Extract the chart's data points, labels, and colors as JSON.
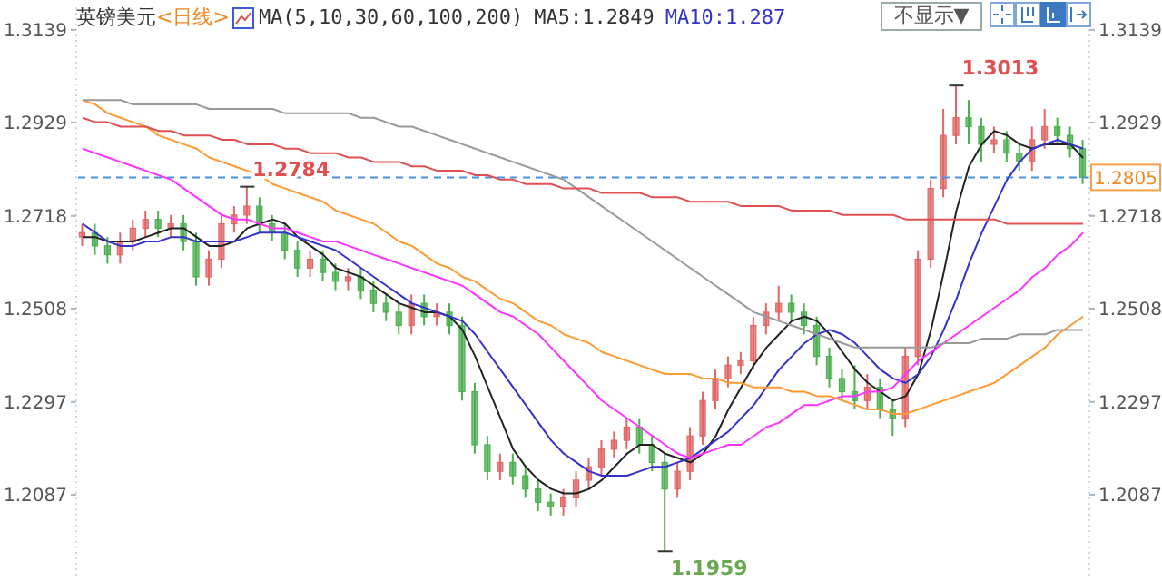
{
  "chart_data": {
    "type": "candlestick",
    "title": "英镑美元",
    "subtitle": "<日线>",
    "annotations": [
      "MA(5,10,30,60,100,200)",
      "MA5:1.2849",
      "MA10:1.287",
      "不显示▼",
      "1.3013",
      "1.2784",
      "1.1959"
    ],
    "categories": [
      null,
      null,
      null,
      null,
      null,
      null,
      null,
      null,
      null,
      null,
      null,
      null,
      null,
      null,
      null,
      null,
      null,
      null,
      null,
      null,
      null,
      null,
      null,
      null,
      null,
      null,
      null,
      null,
      null,
      null,
      null,
      null,
      null,
      null,
      null,
      null,
      null,
      null,
      null,
      null,
      null,
      null,
      null,
      null,
      null,
      null,
      null,
      null,
      null,
      null,
      null,
      null,
      null,
      null,
      null,
      null,
      null,
      null,
      null,
      null,
      null,
      null,
      null,
      null,
      null,
      null,
      null,
      null,
      null,
      null,
      null,
      null,
      null,
      null,
      null,
      null,
      null,
      null,
      null,
      null
    ],
    "ohlc": [
      [
        1.267,
        1.27,
        1.265,
        1.268
      ],
      [
        1.268,
        1.27,
        1.263,
        1.265
      ],
      [
        1.265,
        1.267,
        1.261,
        1.263
      ],
      [
        1.263,
        1.268,
        1.261,
        1.266
      ],
      [
        1.266,
        1.271,
        1.264,
        1.269
      ],
      [
        1.269,
        1.273,
        1.267,
        1.271
      ],
      [
        1.271,
        1.273,
        1.267,
        1.269
      ],
      [
        1.269,
        1.272,
        1.267,
        1.27
      ],
      [
        1.27,
        1.272,
        1.264,
        1.266
      ],
      [
        1.266,
        1.268,
        1.256,
        1.258
      ],
      [
        1.258,
        1.264,
        1.256,
        1.262
      ],
      [
        1.262,
        1.272,
        1.26,
        1.27
      ],
      [
        1.27,
        1.274,
        1.268,
        1.272
      ],
      [
        1.272,
        1.2784,
        1.27,
        1.274
      ],
      [
        1.274,
        1.276,
        1.268,
        1.27
      ],
      [
        1.27,
        1.272,
        1.266,
        1.268
      ],
      [
        1.268,
        1.27,
        1.262,
        1.264
      ],
      [
        1.264,
        1.266,
        1.258,
        1.26
      ],
      [
        1.26,
        1.264,
        1.258,
        1.262
      ],
      [
        1.262,
        1.264,
        1.257,
        1.259
      ],
      [
        1.259,
        1.261,
        1.255,
        1.257
      ],
      [
        1.257,
        1.26,
        1.255,
        1.258
      ],
      [
        1.258,
        1.26,
        1.253,
        1.255
      ],
      [
        1.255,
        1.257,
        1.25,
        1.252
      ],
      [
        1.252,
        1.254,
        1.248,
        1.25
      ],
      [
        1.25,
        1.252,
        1.245,
        1.247
      ],
      [
        1.247,
        1.254,
        1.245,
        1.252
      ],
      [
        1.252,
        1.254,
        1.247,
        1.249
      ],
      [
        1.249,
        1.252,
        1.247,
        1.25
      ],
      [
        1.25,
        1.252,
        1.245,
        1.247
      ],
      [
        1.247,
        1.249,
        1.23,
        1.232
      ],
      [
        1.232,
        1.234,
        1.218,
        1.22
      ],
      [
        1.22,
        1.222,
        1.212,
        1.214
      ],
      [
        1.214,
        1.218,
        1.212,
        1.216
      ],
      [
        1.216,
        1.218,
        1.211,
        1.213
      ],
      [
        1.213,
        1.215,
        1.208,
        1.21
      ],
      [
        1.21,
        1.212,
        1.205,
        1.207
      ],
      [
        1.207,
        1.209,
        1.204,
        1.206
      ],
      [
        1.206,
        1.21,
        1.204,
        1.208
      ],
      [
        1.208,
        1.214,
        1.206,
        1.212
      ],
      [
        1.212,
        1.217,
        1.21,
        1.215
      ],
      [
        1.215,
        1.221,
        1.213,
        1.219
      ],
      [
        1.219,
        1.223,
        1.217,
        1.221
      ],
      [
        1.221,
        1.226,
        1.219,
        1.224
      ],
      [
        1.224,
        1.226,
        1.218,
        1.22
      ],
      [
        1.22,
        1.222,
        1.214,
        1.216
      ],
      [
        1.216,
        1.218,
        1.1959,
        1.21
      ],
      [
        1.21,
        1.216,
        1.208,
        1.214
      ],
      [
        1.214,
        1.224,
        1.212,
        1.222
      ],
      [
        1.222,
        1.232,
        1.22,
        1.23
      ],
      [
        1.23,
        1.237,
        1.228,
        1.235
      ],
      [
        1.235,
        1.24,
        1.233,
        1.238
      ],
      [
        1.238,
        1.241,
        1.236,
        1.239
      ],
      [
        1.239,
        1.249,
        1.237,
        1.247
      ],
      [
        1.247,
        1.252,
        1.245,
        1.25
      ],
      [
        1.25,
        1.256,
        1.248,
        1.252
      ],
      [
        1.252,
        1.254,
        1.248,
        1.25
      ],
      [
        1.25,
        1.252,
        1.245,
        1.247
      ],
      [
        1.247,
        1.249,
        1.238,
        1.24
      ],
      [
        1.24,
        1.242,
        1.233,
        1.235
      ],
      [
        1.235,
        1.237,
        1.23,
        1.232
      ],
      [
        1.232,
        1.238,
        1.228,
        1.23
      ],
      [
        1.23,
        1.236,
        1.228,
        1.233
      ],
      [
        1.233,
        1.235,
        1.226,
        1.228
      ],
      [
        1.228,
        1.23,
        1.222,
        1.226
      ],
      [
        1.226,
        1.242,
        1.224,
        1.24
      ],
      [
        1.24,
        1.264,
        1.238,
        1.262
      ],
      [
        1.262,
        1.28,
        1.26,
        1.278
      ],
      [
        1.278,
        1.296,
        1.276,
        1.29
      ],
      [
        1.29,
        1.3013,
        1.288,
        1.294
      ],
      [
        1.294,
        1.298,
        1.288,
        1.292
      ],
      [
        1.292,
        1.294,
        1.284,
        1.288
      ],
      [
        1.288,
        1.292,
        1.286,
        1.289
      ],
      [
        1.289,
        1.291,
        1.284,
        1.286
      ],
      [
        1.286,
        1.288,
        1.282,
        1.284
      ],
      [
        1.284,
        1.292,
        1.282,
        1.289
      ],
      [
        1.289,
        1.296,
        1.287,
        1.292
      ],
      [
        1.292,
        1.294,
        1.288,
        1.29
      ],
      [
        1.29,
        1.292,
        1.285,
        1.287
      ],
      [
        1.287,
        1.289,
        1.279,
        1.2805
      ]
    ],
    "colors": [
      "#e06666",
      "#4caf50",
      "#4caf50",
      "#e06666",
      "#e06666",
      "#e06666",
      "#4caf50",
      "#e06666",
      "#4caf50",
      "#4caf50",
      "#e06666",
      "#e06666",
      "#e06666",
      "#e06666",
      "#4caf50",
      "#4caf50",
      "#4caf50",
      "#4caf50",
      "#e06666",
      "#4caf50",
      "#4caf50",
      "#e06666",
      "#4caf50",
      "#4caf50",
      "#4caf50",
      "#4caf50",
      "#e06666",
      "#4caf50",
      "#e06666",
      "#4caf50",
      "#4caf50",
      "#4caf50",
      "#4caf50",
      "#e06666",
      "#4caf50",
      "#4caf50",
      "#4caf50",
      "#4caf50",
      "#e06666",
      "#e06666",
      "#e06666",
      "#e06666",
      "#e06666",
      "#e06666",
      "#4caf50",
      "#4caf50",
      "#4caf50",
      "#e06666",
      "#e06666",
      "#e06666",
      "#e06666",
      "#e06666",
      "#e06666",
      "#e06666",
      "#e06666",
      "#e06666",
      "#4caf50",
      "#4caf50",
      "#4caf50",
      "#4caf50",
      "#4caf50",
      "#4caf50",
      "#e06666",
      "#4caf50",
      "#4caf50",
      "#e06666",
      "#e06666",
      "#e06666",
      "#e06666",
      "#e06666",
      "#4caf50",
      "#4caf50",
      "#e06666",
      "#4caf50",
      "#4caf50",
      "#e06666",
      "#e06666",
      "#4caf50",
      "#4caf50",
      "#4caf50"
    ],
    "series": [
      {
        "type": "line",
        "color": "#222222",
        "values": [
          1.267,
          1.267,
          1.266,
          1.266,
          1.266,
          1.267,
          1.268,
          1.269,
          1.269,
          1.267,
          1.265,
          1.265,
          1.266,
          1.269,
          1.27,
          1.271,
          1.27,
          1.267,
          1.265,
          1.263,
          1.26,
          1.259,
          1.258,
          1.256,
          1.254,
          1.252,
          1.251,
          1.25,
          1.25,
          1.249,
          1.246,
          1.24,
          1.233,
          1.226,
          1.219,
          1.215,
          1.212,
          1.21,
          1.209,
          1.209,
          1.21,
          1.212,
          1.215,
          1.218,
          1.22,
          1.22,
          1.218,
          1.217,
          1.216,
          1.218,
          1.222,
          1.228,
          1.233,
          1.238,
          1.242,
          1.245,
          1.248,
          1.249,
          1.248,
          1.245,
          1.241,
          1.237,
          1.234,
          1.232,
          1.23,
          1.231,
          1.236,
          1.246,
          1.259,
          1.273,
          1.283,
          1.288,
          1.291,
          1.29,
          1.288,
          1.287,
          1.288,
          1.288,
          1.288,
          1.2849
        ]
      },
      {
        "type": "line",
        "color": "#3333cc",
        "values": [
          1.27,
          1.268,
          1.266,
          1.265,
          1.265,
          1.266,
          1.266,
          1.267,
          1.267,
          1.266,
          1.266,
          1.266,
          1.266,
          1.267,
          1.268,
          1.268,
          1.268,
          1.267,
          1.266,
          1.265,
          1.264,
          1.262,
          1.26,
          1.258,
          1.256,
          1.254,
          1.252,
          1.251,
          1.25,
          1.249,
          1.248,
          1.245,
          1.241,
          1.237,
          1.233,
          1.229,
          1.225,
          1.221,
          1.218,
          1.216,
          1.214,
          1.213,
          1.213,
          1.213,
          1.214,
          1.215,
          1.215,
          1.216,
          1.217,
          1.219,
          1.221,
          1.223,
          1.226,
          1.229,
          1.233,
          1.237,
          1.24,
          1.243,
          1.245,
          1.246,
          1.245,
          1.243,
          1.24,
          1.237,
          1.235,
          1.234,
          1.236,
          1.24,
          1.246,
          1.253,
          1.261,
          1.268,
          1.274,
          1.28,
          1.284,
          1.287,
          1.288,
          1.289,
          1.288,
          1.287
        ]
      },
      {
        "type": "line",
        "color": "#ff33ff",
        "values": [
          1.287,
          1.286,
          1.285,
          1.284,
          1.283,
          1.282,
          1.281,
          1.28,
          1.278,
          1.276,
          1.274,
          1.272,
          1.271,
          1.271,
          1.27,
          1.269,
          1.269,
          1.268,
          1.267,
          1.266,
          1.266,
          1.265,
          1.264,
          1.263,
          1.262,
          1.261,
          1.26,
          1.259,
          1.258,
          1.257,
          1.256,
          1.254,
          1.252,
          1.25,
          1.249,
          1.247,
          1.245,
          1.242,
          1.239,
          1.236,
          1.233,
          1.23,
          1.228,
          1.226,
          1.224,
          1.222,
          1.22,
          1.218,
          1.217,
          1.218,
          1.219,
          1.22,
          1.22,
          1.222,
          1.224,
          1.225,
          1.227,
          1.229,
          1.229,
          1.23,
          1.231,
          1.231,
          1.232,
          1.232,
          1.233,
          1.236,
          1.239,
          1.241,
          1.243,
          1.245,
          1.247,
          1.249,
          1.251,
          1.253,
          1.255,
          1.258,
          1.26,
          1.263,
          1.265,
          1.268
        ]
      },
      {
        "type": "line",
        "color": "#ff9933",
        "values": [
          1.298,
          1.297,
          1.295,
          1.294,
          1.293,
          1.292,
          1.29,
          1.289,
          1.288,
          1.287,
          1.285,
          1.284,
          1.283,
          1.282,
          1.281,
          1.279,
          1.278,
          1.277,
          1.276,
          1.275,
          1.273,
          1.272,
          1.271,
          1.27,
          1.268,
          1.266,
          1.265,
          1.263,
          1.261,
          1.26,
          1.258,
          1.257,
          1.255,
          1.253,
          1.252,
          1.25,
          1.248,
          1.247,
          1.245,
          1.244,
          1.243,
          1.241,
          1.24,
          1.239,
          1.238,
          1.237,
          1.236,
          1.236,
          1.236,
          1.235,
          1.235,
          1.234,
          1.234,
          1.233,
          1.233,
          1.233,
          1.232,
          1.232,
          1.231,
          1.231,
          1.23,
          1.229,
          1.228,
          1.228,
          1.227,
          1.227,
          1.228,
          1.229,
          1.23,
          1.231,
          1.232,
          1.233,
          1.234,
          1.236,
          1.238,
          1.24,
          1.242,
          1.245,
          1.247,
          1.249
        ]
      },
      {
        "type": "line",
        "color": "#999999",
        "values": [
          1.298,
          1.298,
          1.298,
          1.298,
          1.297,
          1.297,
          1.297,
          1.297,
          1.297,
          1.297,
          1.296,
          1.296,
          1.296,
          1.296,
          1.296,
          1.296,
          1.295,
          1.295,
          1.295,
          1.295,
          1.295,
          1.295,
          1.294,
          1.294,
          1.293,
          1.292,
          1.292,
          1.291,
          1.29,
          1.289,
          1.288,
          1.287,
          1.286,
          1.285,
          1.284,
          1.283,
          1.282,
          1.281,
          1.28,
          1.278,
          1.276,
          1.274,
          1.272,
          1.27,
          1.268,
          1.266,
          1.264,
          1.262,
          1.26,
          1.258,
          1.256,
          1.254,
          1.252,
          1.25,
          1.249,
          1.248,
          1.247,
          1.246,
          1.245,
          1.244,
          1.243,
          1.242,
          1.242,
          1.242,
          1.242,
          1.242,
          1.242,
          1.242,
          1.243,
          1.243,
          1.243,
          1.244,
          1.244,
          1.244,
          1.245,
          1.245,
          1.245,
          1.246,
          1.246,
          1.246
        ]
      },
      {
        "type": "line",
        "color": "#e05050",
        "values": [
          1.294,
          1.293,
          1.293,
          1.292,
          1.292,
          1.292,
          1.291,
          1.291,
          1.29,
          1.29,
          1.29,
          1.289,
          1.289,
          1.288,
          1.288,
          1.288,
          1.287,
          1.287,
          1.286,
          1.286,
          1.286,
          1.285,
          1.285,
          1.284,
          1.284,
          1.284,
          1.283,
          1.283,
          1.282,
          1.282,
          1.282,
          1.281,
          1.281,
          1.28,
          1.28,
          1.279,
          1.279,
          1.279,
          1.278,
          1.278,
          1.278,
          1.277,
          1.277,
          1.277,
          1.277,
          1.276,
          1.276,
          1.276,
          1.275,
          1.275,
          1.275,
          1.275,
          1.274,
          1.274,
          1.274,
          1.274,
          1.273,
          1.273,
          1.273,
          1.273,
          1.272,
          1.272,
          1.272,
          1.272,
          1.272,
          1.271,
          1.271,
          1.271,
          1.271,
          1.271,
          1.271,
          1.271,
          1.271,
          1.27,
          1.27,
          1.27,
          1.27,
          1.27,
          1.27,
          1.27
        ]
      }
    ],
    "ref_lines": [
      {
        "axis": "y2",
        "value": 1.2805,
        "label": "1.2805",
        "color": "#4a90e2",
        "line_style": "dashed"
      }
    ],
    "ylim": [
      1.19,
      1.319
    ],
    "yticks": [
      1.2087,
      1.2297,
      1.2508,
      1.2718,
      1.2929,
      1.3139
    ],
    "y2lim": [
      1.19,
      1.319
    ],
    "y2ticks": [
      1.2087,
      1.2297,
      1.2508,
      1.2718,
      1.2929,
      1.3139
    ],
    "tick_labels": "y"
  }
}
